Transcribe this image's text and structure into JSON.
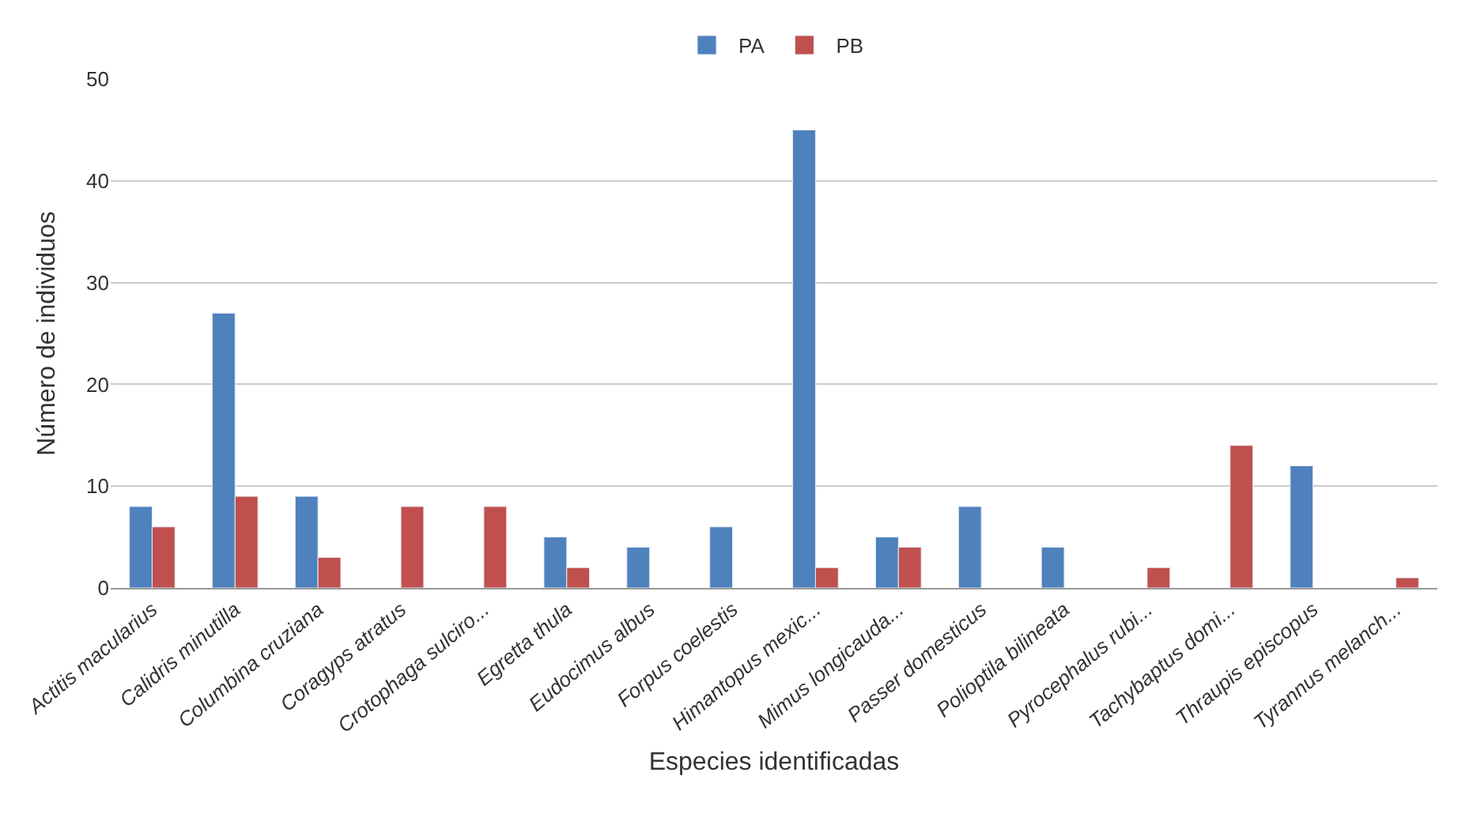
{
  "chart_data": {
    "type": "bar",
    "xlabel": "Especies identificadas",
    "ylabel": "Número de individuos",
    "categories": [
      "Actitis macularius",
      "Calidris minutilla",
      "Columbina cruziana",
      "Coragyps atratus",
      "Crotophaga sulciro...",
      "Egretta thula",
      "Eudocimus albus",
      "Forpus coelestis",
      "Himantopus mexic...",
      "Mimus longicauda...",
      "Passer domesticus",
      "Polioptila bilineata",
      "Pyrocephalus rubi...",
      "Tachybaptus domi...",
      "Thraupis episcopus",
      "Tyrannus melanch..."
    ],
    "series": [
      {
        "name": "PA",
        "color": "#4f81bd",
        "values": [
          8,
          27,
          9,
          null,
          null,
          5,
          4,
          6,
          45,
          5,
          8,
          4,
          null,
          null,
          12,
          null
        ]
      },
      {
        "name": "PB",
        "color": "#c0504d",
        "values": [
          6,
          9,
          3,
          8,
          8,
          2,
          null,
          null,
          2,
          4,
          null,
          null,
          2,
          14,
          null,
          1
        ]
      }
    ],
    "ylim": [
      0,
      50
    ],
    "yticks": [
      0,
      10,
      20,
      30,
      40,
      50
    ],
    "grid": "y",
    "legend": "top"
  }
}
